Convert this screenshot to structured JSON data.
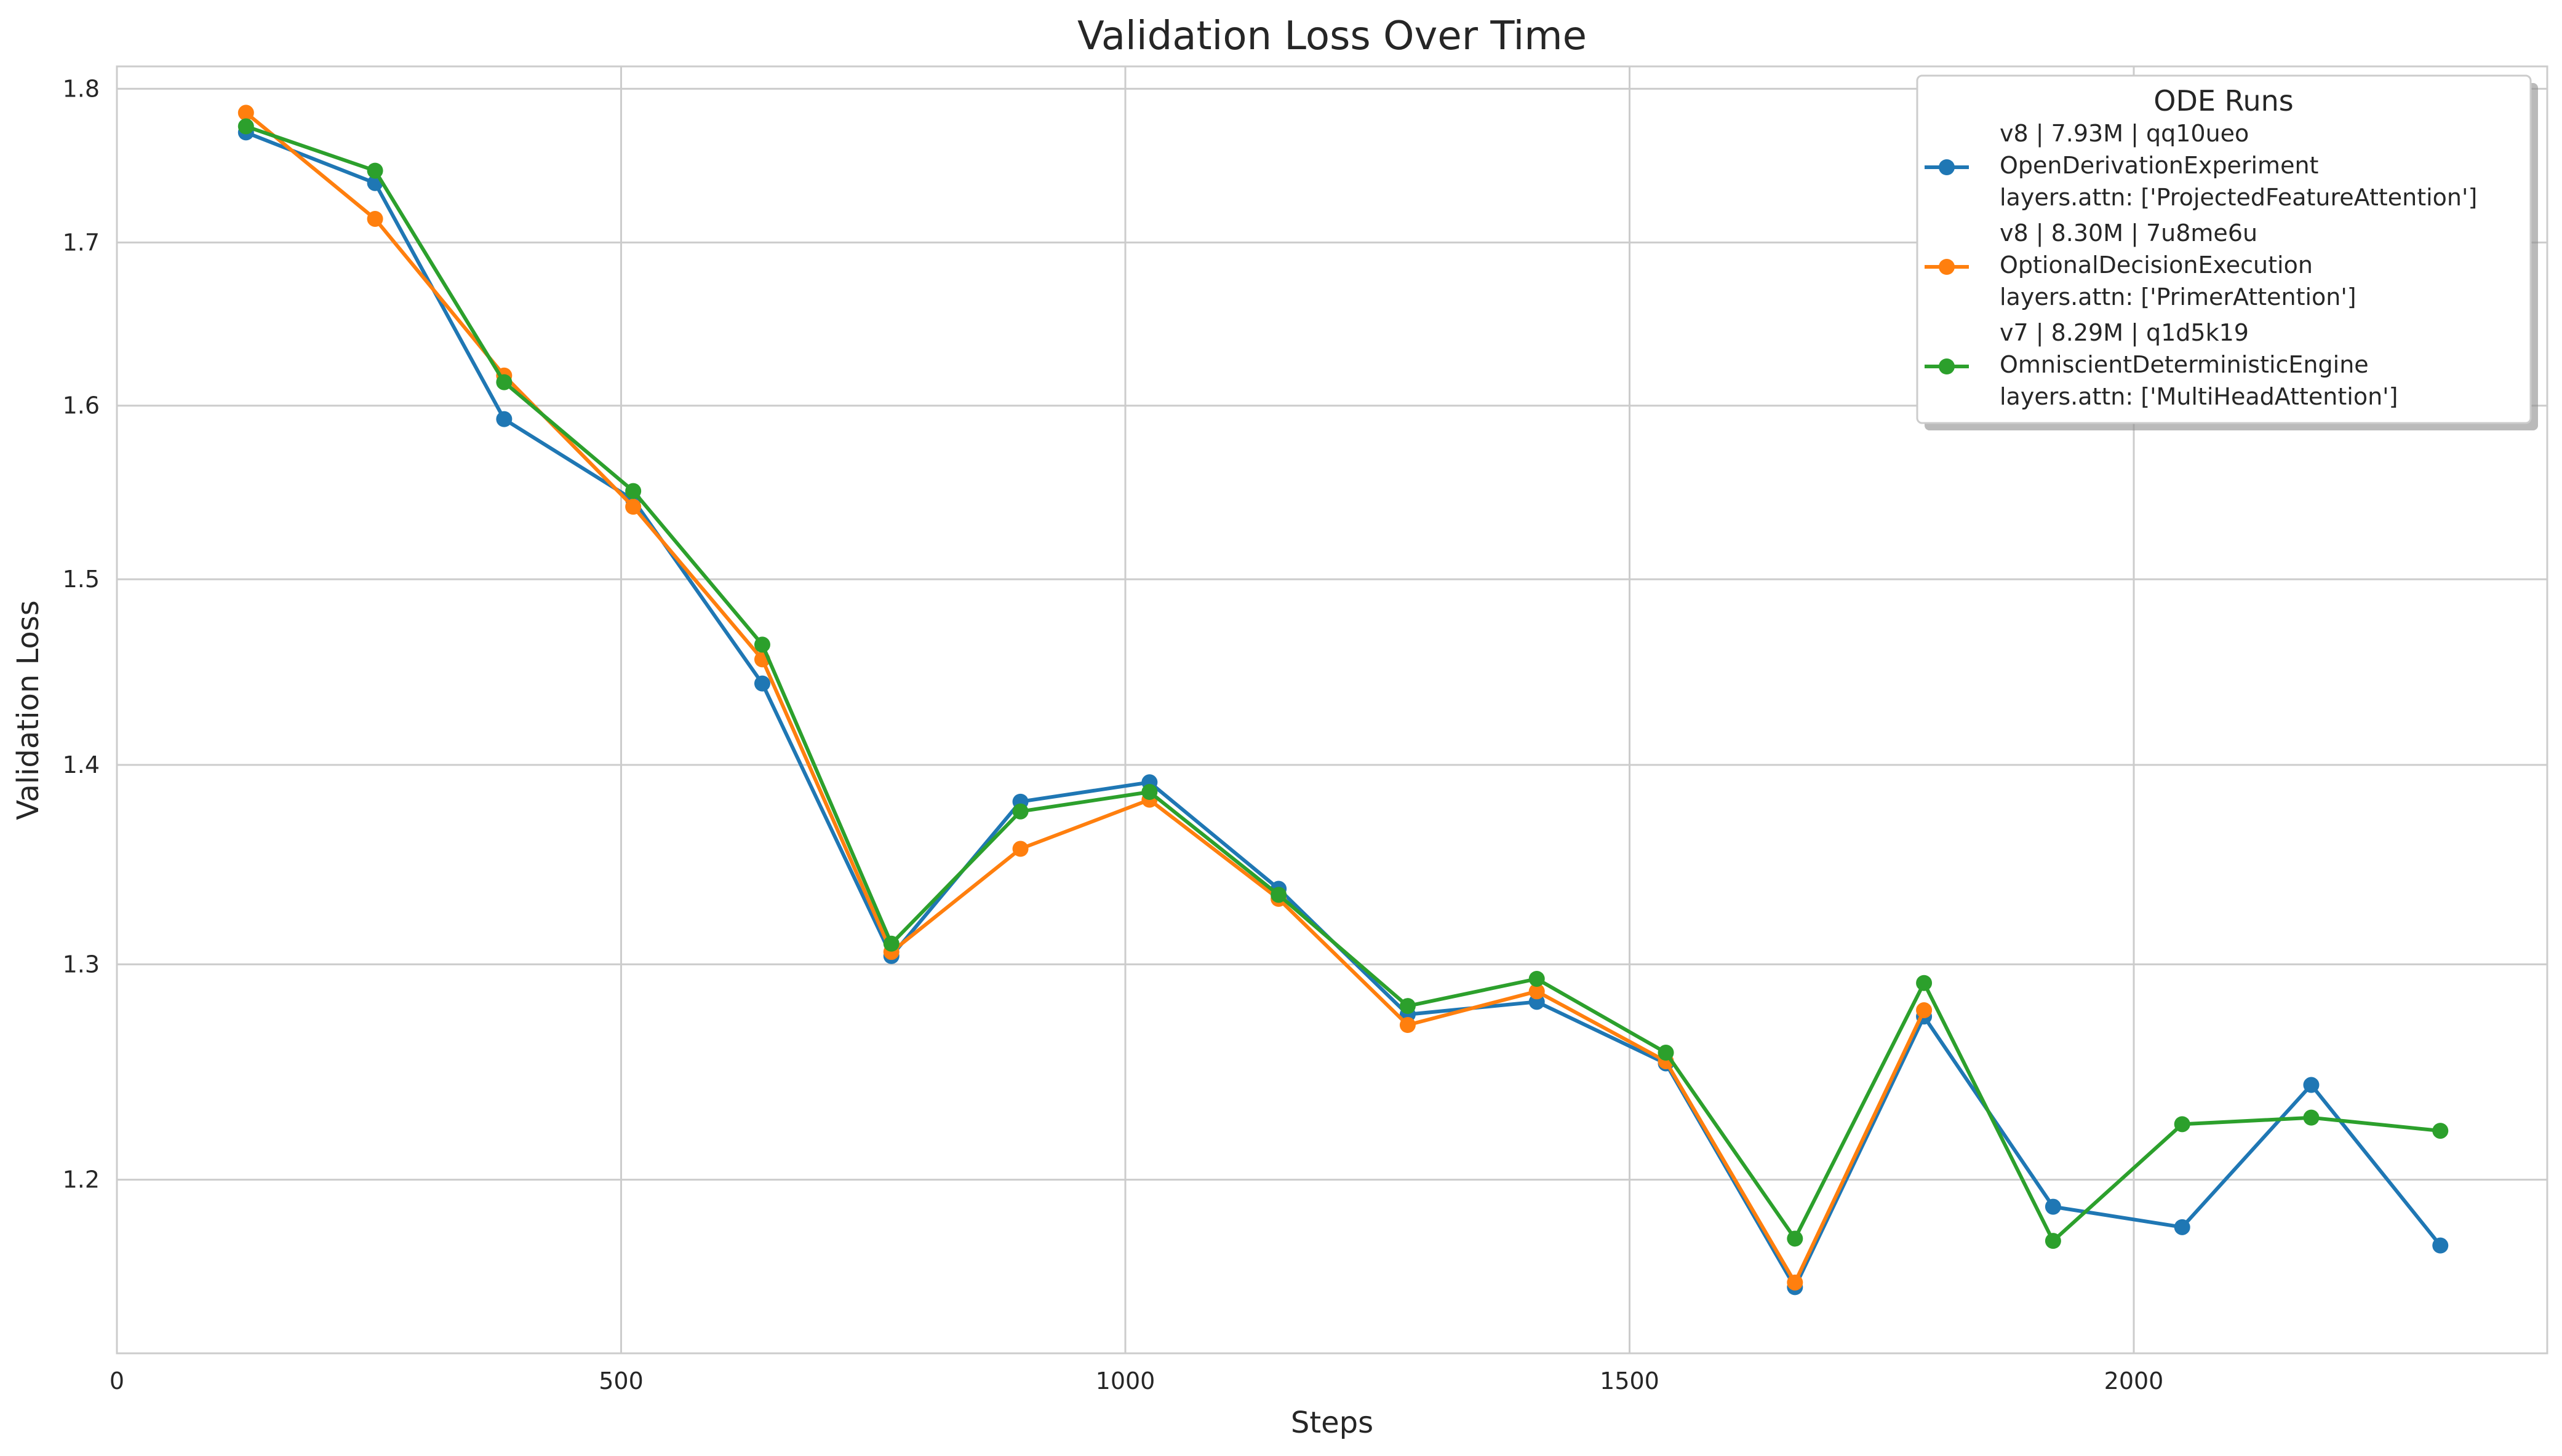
{
  "chart_data": {
    "type": "line",
    "title": "Validation Loss Over Time",
    "xlabel": "Steps",
    "ylabel": "Validation Loss",
    "yscale": "log",
    "xlim": [
      0,
      2410
    ],
    "ylim": [
      1.125,
      1.815
    ],
    "xticks": [
      0,
      500,
      1000,
      1500,
      2000
    ],
    "yticks": [
      1.2,
      1.3,
      1.4,
      1.5,
      1.6,
      1.7,
      1.8
    ],
    "grid": true,
    "legend": {
      "title": "ODE Runs",
      "placement": "top-right"
    },
    "series": [
      {
        "name": "v8 | 7.93M | qq10ueo\nOpenDerivationExperiment\nlayers.attn: ['ProjectedFeatureAttention']",
        "color": "#1f77b4",
        "x": [
          128,
          256,
          384,
          512,
          640,
          768,
          896,
          1024,
          1152,
          1280,
          1408,
          1536,
          1664,
          1792,
          1920,
          2048,
          2176,
          2304
        ],
        "y": [
          1.771,
          1.738,
          1.592,
          1.545,
          1.443,
          1.304,
          1.381,
          1.391,
          1.337,
          1.276,
          1.282,
          1.253,
          1.153,
          1.275,
          1.188,
          1.179,
          1.243,
          1.171
        ]
      },
      {
        "name": "v8 | 8.30M | 7u8me6u\nOptionalDecisionExecution\nlayers.attn: ['PrimerAttention']",
        "color": "#ff7f0e",
        "x": [
          128,
          256,
          384,
          512,
          640,
          768,
          896,
          1024,
          1152,
          1280,
          1408,
          1536,
          1664,
          1792,
          1920,
          2048,
          2176,
          2304
        ],
        "y": [
          1.784,
          1.715,
          1.618,
          1.541,
          1.456,
          1.306,
          1.357,
          1.382,
          1.332,
          1.271,
          1.287,
          1.254,
          1.155,
          1.278,
          null,
          null,
          null,
          null
        ]
      },
      {
        "name": "v7 | 8.29M | q1d5k19\nOmniscientDeterministicEngine\nlayers.attn: ['MultiHeadAttention']",
        "color": "#2ca02c",
        "x": [
          128,
          256,
          384,
          512,
          640,
          768,
          896,
          1024,
          1152,
          1280,
          1408,
          1536,
          1664,
          1792,
          1920,
          2048,
          2176,
          2304
        ],
        "y": [
          1.775,
          1.746,
          1.614,
          1.55,
          1.464,
          1.31,
          1.376,
          1.386,
          1.334,
          1.28,
          1.293,
          1.258,
          1.174,
          1.291,
          1.173,
          1.225,
          1.228,
          1.222
        ]
      }
    ]
  }
}
